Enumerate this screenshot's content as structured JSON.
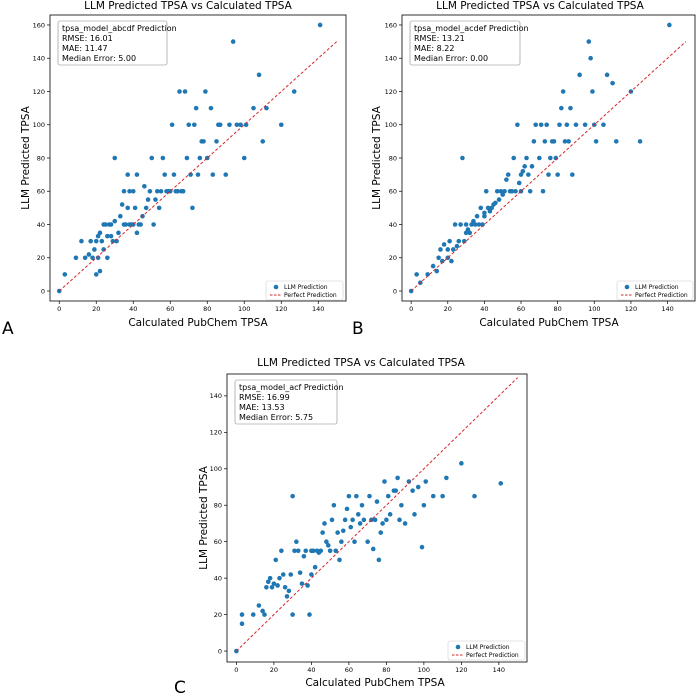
{
  "panel_letters": [
    "A",
    "B",
    "C"
  ],
  "chart_data": [
    {
      "type": "scatter",
      "title": "LLM Predicted TPSA vs Calculated TPSA",
      "xlabel": "Calculated PubChem TPSA",
      "ylabel": "LLM Predicted TPSA",
      "xlim": [
        -5,
        155
      ],
      "ylim": [
        -6,
        166
      ],
      "xticks": [
        0,
        20,
        40,
        60,
        80,
        100,
        120,
        140
      ],
      "yticks": [
        0,
        20,
        40,
        60,
        80,
        100,
        120,
        140,
        160
      ],
      "stats": [
        "tpsa_model_abcdf Prediction",
        "RMSE: 16.01",
        "MAE: 11.47",
        "Median Error: 5.00"
      ],
      "legend": [
        "LLM Prediction",
        "Perfect Prediction"
      ],
      "series": [
        {
          "name": "LLM Prediction",
          "color": "#1f77b4",
          "kind": "points",
          "x": [
            0,
            3,
            9,
            12,
            14,
            16,
            17,
            18,
            19,
            20,
            20,
            21,
            21,
            22,
            22,
            23,
            24,
            24,
            25,
            26,
            26,
            27,
            28,
            28,
            29,
            30,
            30,
            31,
            32,
            33,
            34,
            35,
            35,
            36,
            37,
            37,
            38,
            38,
            39,
            40,
            40,
            41,
            42,
            42,
            43,
            44,
            45,
            46,
            47,
            48,
            49,
            50,
            51,
            52,
            53,
            54,
            55,
            56,
            57,
            58,
            59,
            60,
            61,
            62,
            63,
            64,
            65,
            66,
            67,
            68,
            69,
            70,
            71,
            72,
            73,
            74,
            75,
            76,
            77,
            78,
            79,
            80,
            82,
            83,
            85,
            86,
            87,
            90,
            92,
            94,
            96,
            98,
            100,
            101,
            105,
            108,
            110,
            112,
            120,
            127,
            141
          ],
          "y": [
            0,
            10,
            20,
            30,
            20,
            22,
            30,
            20,
            25,
            30,
            10,
            20,
            33,
            12,
            35,
            30,
            40,
            25,
            40,
            33,
            20,
            40,
            33,
            40,
            30,
            42,
            80,
            30,
            35,
            45,
            52,
            40,
            60,
            40,
            50,
            70,
            40,
            60,
            40,
            40,
            60,
            50,
            35,
            70,
            40,
            40,
            45,
            63,
            50,
            55,
            60,
            80,
            40,
            55,
            60,
            50,
            60,
            80,
            70,
            60,
            60,
            60,
            100,
            70,
            60,
            60,
            120,
            60,
            60,
            120,
            80,
            100,
            70,
            50,
            100,
            110,
            70,
            80,
            90,
            90,
            120,
            80,
            110,
            70,
            90,
            100,
            100,
            70,
            100,
            150,
            100,
            100,
            80,
            100,
            110,
            130,
            90,
            110,
            100,
            120,
            160
          ]
        },
        {
          "name": "Perfect Prediction",
          "color": "#d62728",
          "kind": "line",
          "x": [
            0,
            150
          ],
          "y": [
            0,
            150
          ]
        }
      ]
    },
    {
      "type": "scatter",
      "title": "LLM Predicted TPSA vs Calculated TPSA",
      "xlabel": "Calculated PubChem TPSA",
      "ylabel": "LLM Predicted TPSA",
      "xlim": [
        -5,
        155
      ],
      "ylim": [
        -6,
        166
      ],
      "xticks": [
        0,
        20,
        40,
        60,
        80,
        100,
        120,
        140
      ],
      "yticks": [
        0,
        20,
        40,
        60,
        80,
        100,
        120,
        140,
        160
      ],
      "stats": [
        "tpsa_model_acdef Prediction",
        "RMSE: 13.21",
        "MAE: 8.22",
        "Median Error: 0.00"
      ],
      "legend": [
        "LLM Prediction",
        "Perfect Prediction"
      ],
      "series": [
        {
          "name": "LLM Prediction",
          "color": "#1f77b4",
          "kind": "points",
          "x": [
            0,
            3,
            5,
            9,
            12,
            14,
            15,
            16,
            17,
            18,
            20,
            20,
            21,
            22,
            23,
            24,
            25,
            26,
            27,
            28,
            29,
            30,
            30,
            31,
            32,
            33,
            34,
            35,
            36,
            37,
            38,
            39,
            40,
            40,
            41,
            42,
            43,
            44,
            45,
            46,
            47,
            48,
            49,
            50,
            51,
            52,
            53,
            54,
            55,
            56,
            57,
            58,
            59,
            60,
            60,
            61,
            62,
            63,
            64,
            65,
            66,
            67,
            68,
            70,
            71,
            72,
            73,
            74,
            75,
            76,
            77,
            78,
            79,
            80,
            81,
            82,
            83,
            84,
            85,
            86,
            87,
            88,
            90,
            92,
            95,
            97,
            98,
            99,
            100,
            101,
            105,
            107,
            110,
            112,
            120,
            125,
            141
          ],
          "y": [
            0,
            10,
            5,
            10,
            15,
            12,
            20,
            25,
            18,
            28,
            20,
            25,
            30,
            18,
            25,
            40,
            27,
            30,
            40,
            80,
            30,
            35,
            40,
            37,
            35,
            40,
            42,
            40,
            45,
            40,
            50,
            40,
            45,
            47,
            60,
            50,
            48,
            50,
            52,
            53,
            60,
            55,
            60,
            58,
            60,
            67,
            70,
            60,
            60,
            80,
            60,
            100,
            65,
            70,
            60,
            72,
            75,
            80,
            70,
            60,
            75,
            90,
            100,
            80,
            100,
            60,
            90,
            100,
            70,
            80,
            90,
            90,
            80,
            70,
            100,
            110,
            120,
            90,
            100,
            90,
            110,
            70,
            100,
            130,
            100,
            150,
            140,
            120,
            100,
            90,
            100,
            130,
            125,
            90,
            120,
            90,
            160
          ]
        },
        {
          "name": "Perfect Prediction",
          "color": "#d62728",
          "kind": "line",
          "x": [
            0,
            150
          ],
          "y": [
            0,
            150
          ]
        }
      ]
    },
    {
      "type": "scatter",
      "title": "LLM Predicted TPSA vs Calculated TPSA",
      "xlabel": "Calculated PubChem TPSA",
      "ylabel": "LLM Predicted TPSA",
      "xlim": [
        -5,
        155
      ],
      "ylim": [
        -6,
        152
      ],
      "xticks": [
        0,
        20,
        40,
        60,
        80,
        100,
        120,
        140
      ],
      "yticks": [
        0,
        20,
        40,
        60,
        80,
        100,
        120,
        140
      ],
      "stats": [
        "tpsa_model_acf Prediction",
        "RMSE: 16.99",
        "MAE: 13.53",
        "Median Error: 5.75"
      ],
      "legend": [
        "LLM Prediction",
        "Perfect Prediction"
      ],
      "series": [
        {
          "name": "LLM Prediction",
          "color": "#1f77b4",
          "kind": "points",
          "x": [
            0,
            3,
            3,
            9,
            12,
            14,
            15,
            16,
            17,
            18,
            19,
            20,
            21,
            22,
            23,
            24,
            25,
            26,
            27,
            28,
            29,
            30,
            30,
            31,
            32,
            33,
            34,
            35,
            36,
            37,
            38,
            39,
            40,
            40,
            41,
            42,
            43,
            44,
            45,
            46,
            47,
            48,
            49,
            50,
            51,
            52,
            53,
            54,
            55,
            56,
            57,
            58,
            59,
            60,
            61,
            62,
            63,
            64,
            65,
            66,
            67,
            68,
            70,
            71,
            72,
            73,
            74,
            75,
            76,
            77,
            78,
            79,
            80,
            81,
            82,
            84,
            85,
            86,
            87,
            88,
            90,
            92,
            94,
            95,
            97,
            99,
            100,
            101,
            105,
            110,
            112,
            120,
            127,
            141
          ],
          "y": [
            0,
            15,
            20,
            20,
            25,
            22,
            20,
            35,
            38,
            40,
            35,
            37,
            50,
            36,
            40,
            55,
            42,
            35,
            30,
            33,
            42,
            85,
            20,
            55,
            60,
            55,
            43,
            37,
            52,
            55,
            36,
            20,
            55,
            42,
            55,
            46,
            55,
            54,
            55,
            65,
            70,
            60,
            58,
            55,
            72,
            80,
            55,
            65,
            50,
            60,
            66,
            72,
            78,
            85,
            68,
            72,
            60,
            85,
            75,
            70,
            80,
            72,
            60,
            85,
            72,
            56,
            72,
            82,
            50,
            65,
            70,
            93,
            72,
            85,
            75,
            88,
            88,
            95,
            72,
            80,
            70,
            93,
            88,
            75,
            90,
            57,
            80,
            93,
            85,
            85,
            95,
            103,
            85,
            92
          ]
        },
        {
          "name": "Perfect Prediction",
          "color": "#d62728",
          "kind": "line",
          "x": [
            0,
            150
          ],
          "y": [
            0,
            150
          ]
        }
      ]
    }
  ]
}
